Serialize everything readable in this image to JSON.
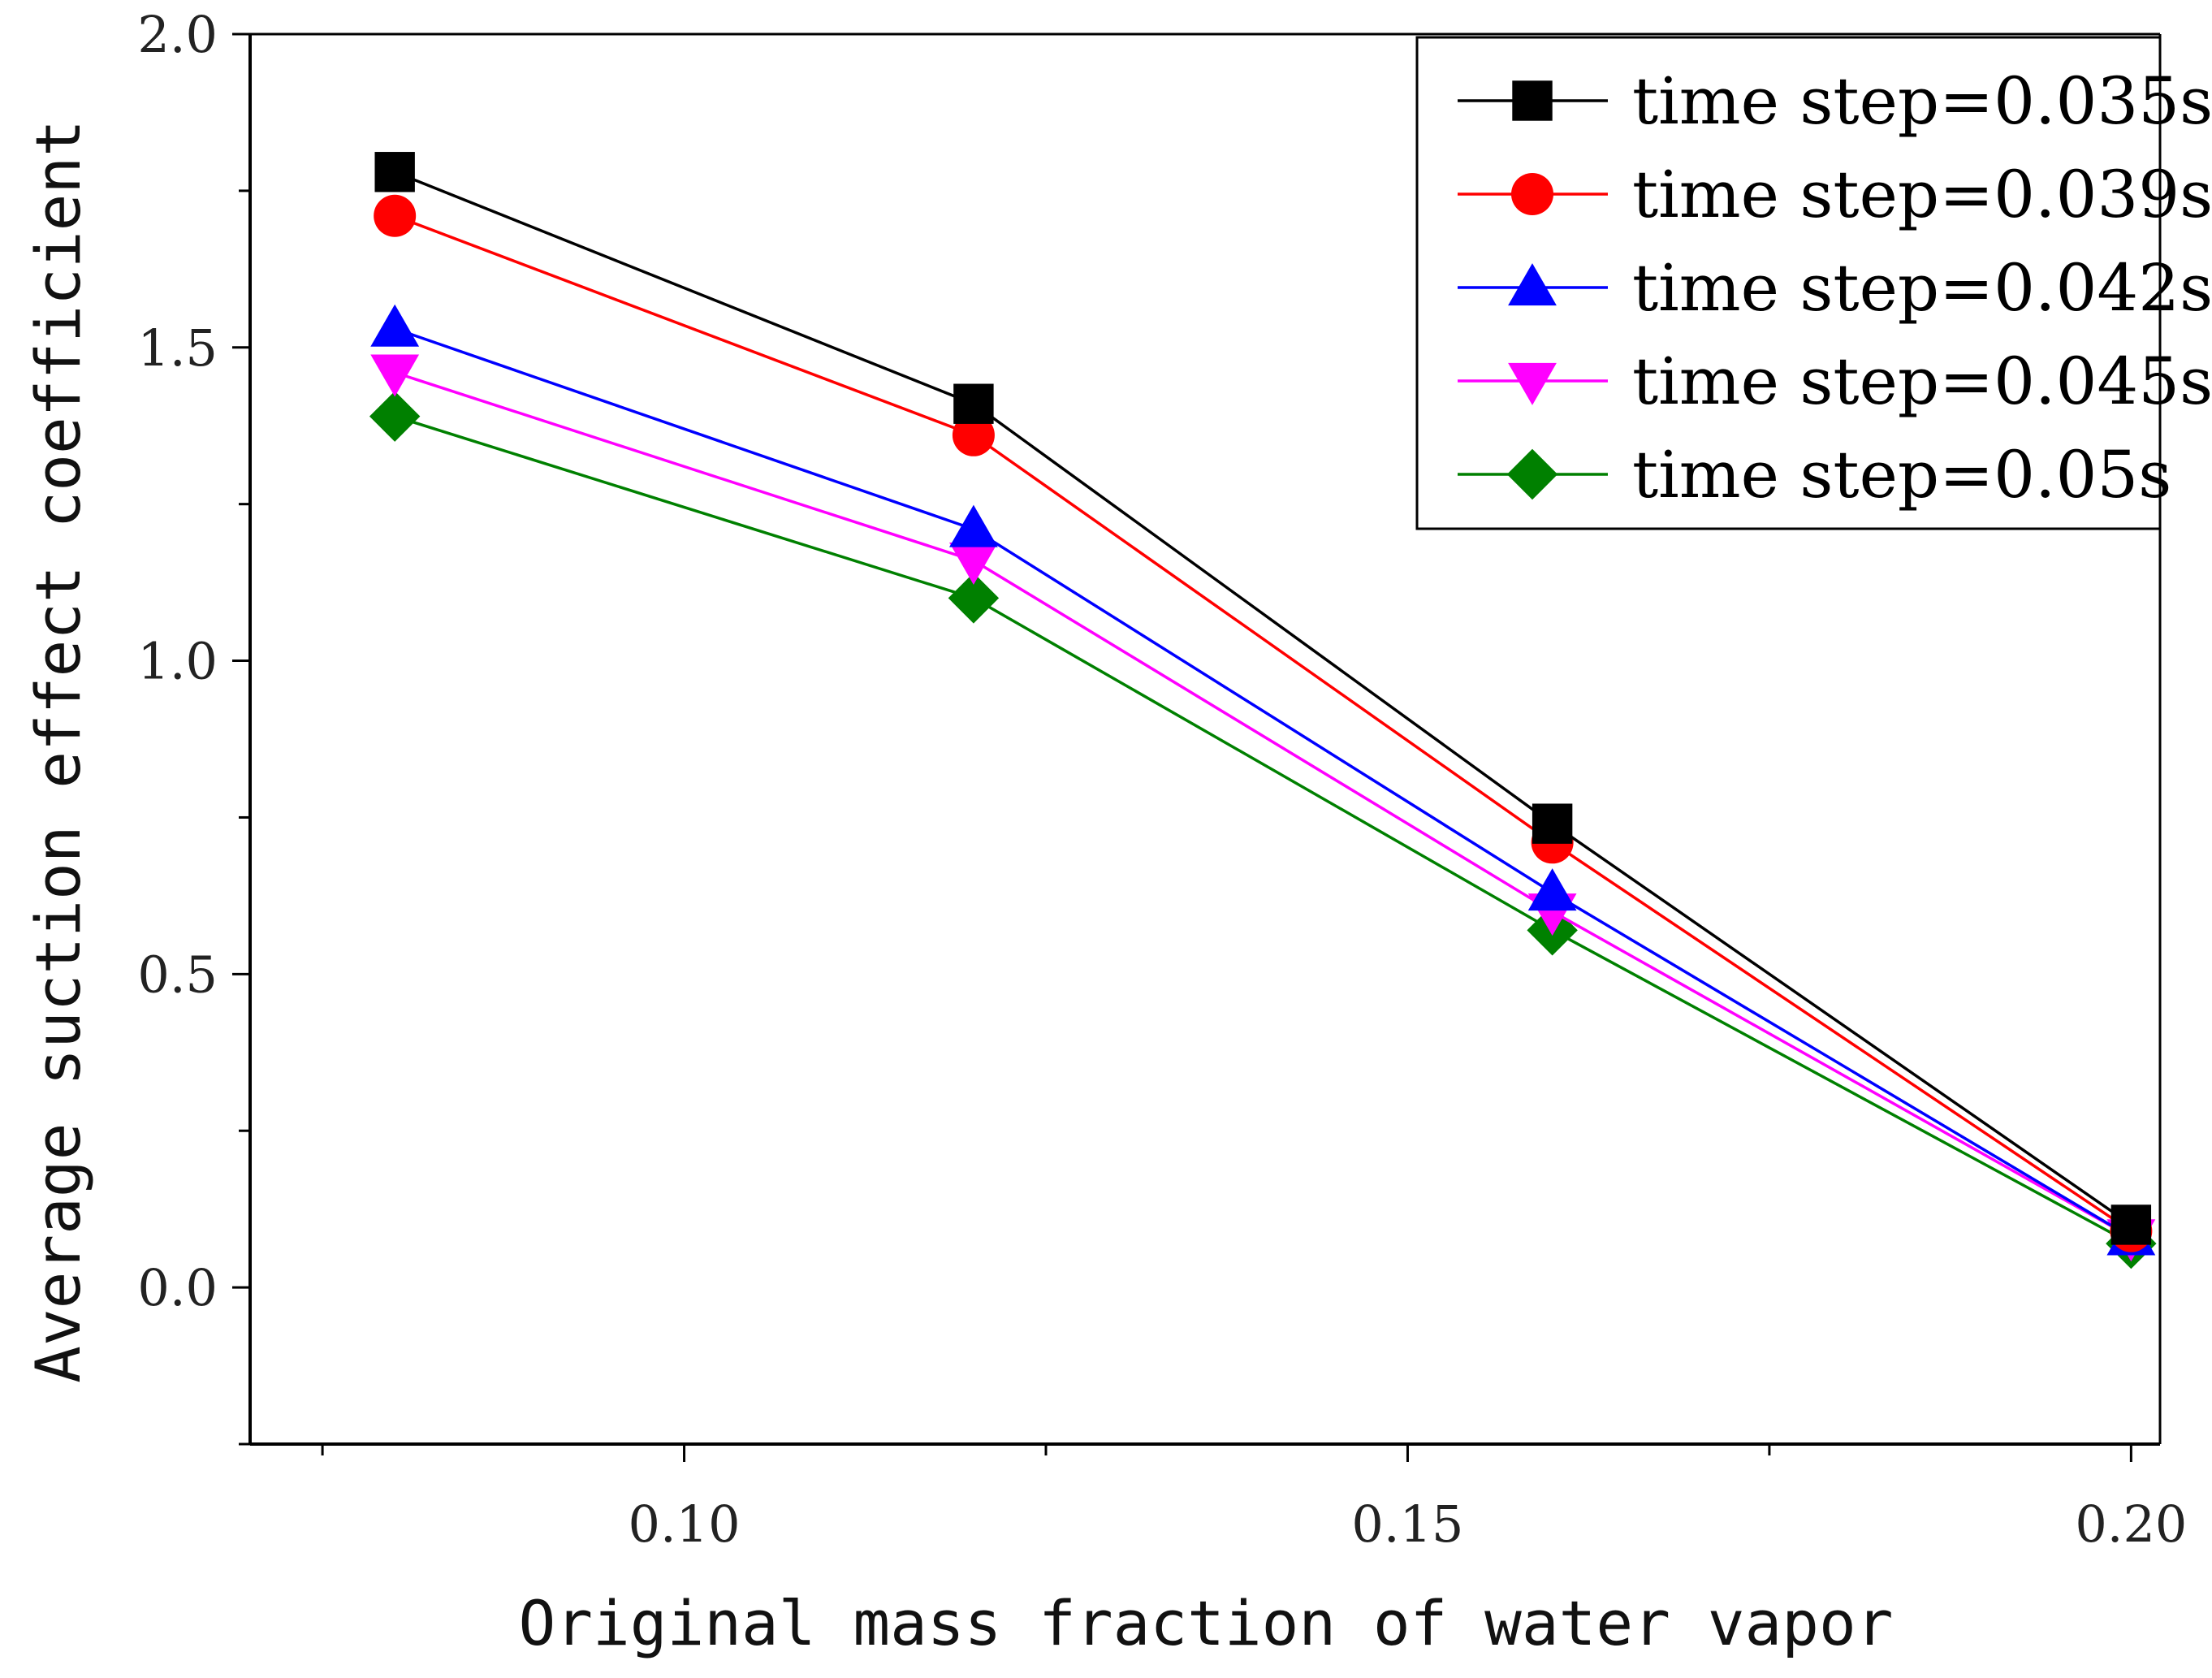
{
  "chart_data": {
    "type": "line",
    "title": "",
    "xlabel": "Original mass fraction of water vapor",
    "ylabel": "Average suction effect coefficient",
    "xlim": [
      0.07,
      0.202
    ],
    "ylim": [
      -0.25,
      2.0
    ],
    "xticks": [
      0.1,
      0.15,
      0.2
    ],
    "xtick_labels": [
      "0.10",
      "0.15",
      "0.20"
    ],
    "xminor_ticks": [
      0.075,
      0.125,
      0.175
    ],
    "yticks": [
      0.0,
      0.5,
      1.0,
      1.5,
      2.0
    ],
    "ytick_labels": [
      "0.0",
      "0.5",
      "1.0",
      "1.5",
      "2.0"
    ],
    "yminor_ticks": [
      -0.25,
      0.25,
      0.75,
      1.25,
      1.75
    ],
    "grid": false,
    "legend_position": "top-right",
    "x": [
      0.08,
      0.12,
      0.16,
      0.2
    ],
    "series": [
      {
        "name": "time step=0.035s",
        "values": [
          1.78,
          1.41,
          0.74,
          0.1
        ],
        "color": "#000000",
        "marker": "square"
      },
      {
        "name": "time step=0.039s",
        "values": [
          1.71,
          1.36,
          0.71,
          0.09
        ],
        "color": "#ff0000",
        "marker": "circle"
      },
      {
        "name": "time step=0.042s",
        "values": [
          1.53,
          1.21,
          0.63,
          0.08
        ],
        "color": "#0000ff",
        "marker": "triangle-up"
      },
      {
        "name": "time step=0.045s",
        "values": [
          1.46,
          1.16,
          0.6,
          0.08
        ],
        "color": "#ff00ff",
        "marker": "triangle-down"
      },
      {
        "name": "time step=0.05s",
        "values": [
          1.39,
          1.1,
          0.57,
          0.07
        ],
        "color": "#008000",
        "marker": "diamond"
      }
    ]
  }
}
